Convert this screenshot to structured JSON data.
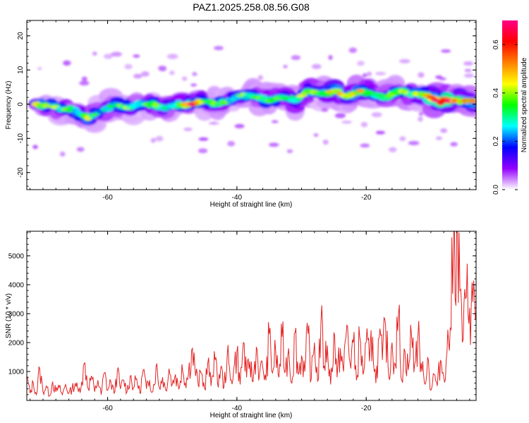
{
  "title": "PAZ1.2025.258.08.56.G08",
  "chart_data": [
    {
      "type": "heatmap",
      "name": "spectrogram",
      "xlabel": "Height of straight line (km)",
      "ylabel": "Frequency (Hz)",
      "xlim": [
        -72.5,
        -3
      ],
      "ylim": [
        -25,
        24.5
      ],
      "xticks": [
        -60,
        -40,
        -20
      ],
      "xtick_labels": [
        "-60",
        "-40",
        "-20"
      ],
      "yticks": [
        20,
        10,
        0,
        -10,
        -20
      ],
      "ytick_labels": [
        "20",
        "10",
        "0",
        "-10",
        "-20"
      ],
      "colorbar": {
        "label": "Normalized spectral amplitude",
        "range": [
          0,
          0.7
        ],
        "ticks": [
          0,
          0.2,
          0.4,
          0.6
        ],
        "tick_labels": [
          "0.0",
          "0.2",
          "0.4",
          "0.6"
        ],
        "colors": [
          "#ffffff",
          "#9400ff",
          "#0000ff",
          "#00ffff",
          "#00ff00",
          "#ffff00",
          "#ff8000",
          "#ff0000",
          "#ff0088"
        ]
      },
      "ridge": {
        "x": [
          -71,
          -68,
          -65,
          -63,
          -61,
          -59,
          -57,
          -55,
          -53,
          -51,
          -49,
          -47,
          -45,
          -43,
          -41,
          -39,
          -37,
          -35,
          -33,
          -31,
          -29,
          -27,
          -25,
          -23,
          -21,
          -19,
          -17,
          -15,
          -13,
          -11,
          -9,
          -7,
          -5,
          -3
        ],
        "freq": [
          0,
          -1,
          -2,
          -4,
          -2,
          0,
          -1,
          0,
          0,
          -1,
          0,
          0,
          1,
          0,
          1,
          3,
          2,
          1,
          2,
          1,
          4,
          3,
          4,
          2,
          4,
          3,
          2,
          4,
          3,
          3,
          1,
          1,
          1,
          1
        ],
        "amp": [
          0.45,
          0.35,
          0.3,
          0.4,
          0.25,
          0.3,
          0.35,
          0.3,
          0.35,
          0.3,
          0.35,
          0.6,
          0.3,
          0.35,
          0.3,
          0.35,
          0.3,
          0.35,
          0.3,
          0.35,
          0.4,
          0.3,
          0.45,
          0.35,
          0.5,
          0.35,
          0.3,
          0.4,
          0.35,
          0.4,
          0.65,
          0.6,
          0.5,
          0.4
        ]
      }
    },
    {
      "type": "line",
      "name": "snr",
      "xlabel": "Height of straight line (km)",
      "ylabel": "SNR (10 * v/v)",
      "xlim": [
        -72.5,
        -3
      ],
      "ylim": [
        0,
        5850
      ],
      "xticks": [
        -60,
        -40,
        -20
      ],
      "xtick_labels": [
        "-60",
        "-40",
        "-20"
      ],
      "yticks": [
        1000,
        2000,
        3000,
        4000,
        5000
      ],
      "ytick_labels": [
        "1000",
        "2000",
        "3000",
        "4000",
        "5000"
      ],
      "line_color": "#e32222",
      "series": [
        {
          "name": "SNR",
          "x": [
            -72.5,
            -72,
            -71.5,
            -71,
            -70.5,
            -70,
            -69.5,
            -69,
            -68.5,
            -68,
            -67.5,
            -67,
            -66.5,
            -66,
            -65.5,
            -65,
            -64.5,
            -64,
            -63.5,
            -63,
            -62.5,
            -62,
            -61.5,
            -61,
            -60.5,
            -60,
            -59.5,
            -59,
            -58.5,
            -58,
            -57.5,
            -57,
            -56.5,
            -56,
            -55.5,
            -55,
            -54.5,
            -54,
            -53.5,
            -53,
            -52.5,
            -52,
            -51.5,
            -51,
            -50.5,
            -50,
            -49.5,
            -49,
            -48.5,
            -48,
            -47.5,
            -47,
            -46.5,
            -46,
            -45.5,
            -45,
            -44.5,
            -44,
            -43.5,
            -43,
            -42.5,
            -42,
            -41.5,
            -41,
            -40.5,
            -40,
            -39.5,
            -39,
            -38.5,
            -38,
            -37.5,
            -37,
            -36.5,
            -36,
            -35.5,
            -35,
            -34.5,
            -34,
            -33.5,
            -33,
            -32.5,
            -32,
            -31.5,
            -31,
            -30.5,
            -30,
            -29.5,
            -29,
            -28.5,
            -28,
            -27.5,
            -27,
            -26.5,
            -26,
            -25.5,
            -25,
            -24.5,
            -24,
            -23.5,
            -23,
            -22.5,
            -22,
            -21.5,
            -21,
            -20.5,
            -20,
            -19.5,
            -19,
            -18.5,
            -18,
            -17.5,
            -17,
            -16.5,
            -16,
            -15.5,
            -15,
            -14.5,
            -14,
            -13.5,
            -13,
            -12.5,
            -12,
            -11.5,
            -11,
            -10.5,
            -10,
            -9.5,
            -9,
            -8.5,
            -8,
            -7.5,
            -7,
            -6.5,
            -6,
            -5.5,
            -5,
            -4.5,
            -4,
            -3.5,
            -3
          ],
          "values": [
            800,
            250,
            600,
            200,
            1100,
            300,
            500,
            150,
            650,
            300,
            450,
            200,
            550,
            250,
            400,
            600,
            300,
            650,
            1300,
            400,
            850,
            300,
            700,
            200,
            950,
            350,
            650,
            250,
            1000,
            400,
            700,
            300,
            850,
            450,
            750,
            250,
            1050,
            400,
            700,
            300,
            1200,
            450,
            800,
            350,
            1100,
            550,
            900,
            400,
            1250,
            600,
            900,
            1750,
            1150,
            550,
            950,
            400,
            1300,
            500,
            1700,
            600,
            1150,
            450,
            1550,
            700,
            1050,
            1700,
            550,
            2000,
            800,
            1350,
            650,
            1850,
            900,
            1150,
            700,
            2300,
            950,
            1700,
            800,
            2200,
            1000,
            1800,
            600,
            2350,
            900,
            1550,
            1000,
            2300,
            750,
            2000,
            650,
            2700,
            1200,
            1900,
            550,
            2350,
            800,
            1800,
            1000,
            2600,
            1300,
            2000,
            700,
            2200,
            900,
            2000,
            1350,
            2200,
            600,
            2150,
            1400,
            2600,
            800,
            2000,
            1250,
            3000,
            700,
            1700,
            1050,
            2300,
            1250,
            2200,
            1300,
            600,
            1500,
            350,
            900,
            500,
            1400,
            800,
            1700,
            2500,
            5300,
            5800,
            3800,
            2100,
            3600,
            3200,
            3400,
            3000
          ]
        }
      ]
    }
  ]
}
